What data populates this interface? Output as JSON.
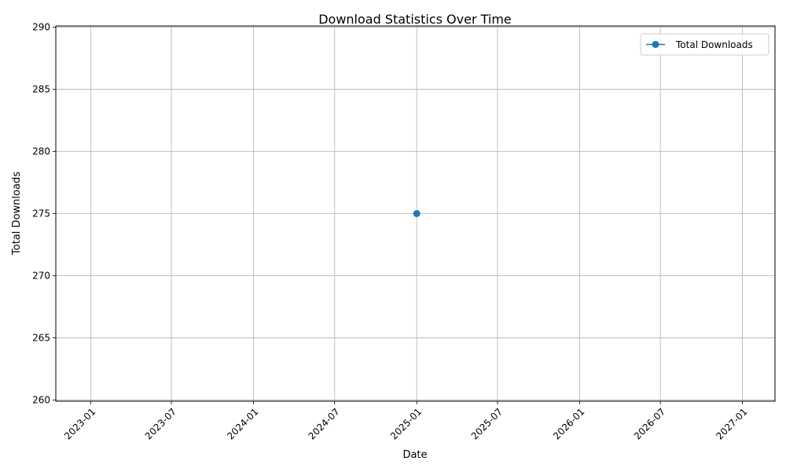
{
  "chart_data": {
    "type": "line",
    "title": "Download Statistics Over Time",
    "xlabel": "Date",
    "ylabel": "Total Downloads",
    "x_ticks": [
      "2023-01",
      "2023-07",
      "2024-01",
      "2024-07",
      "2025-01",
      "2025-07",
      "2026-01",
      "2026-07",
      "2027-01"
    ],
    "y_ticks": [
      "260",
      "265",
      "270",
      "275",
      "280",
      "285",
      "290"
    ],
    "xlim": [
      "2022-10-15",
      "2027-03-15"
    ],
    "ylim": [
      259.9,
      290.1
    ],
    "grid": true,
    "legend_position": "top-right",
    "series": [
      {
        "name": "Total Downloads",
        "color": "#1f77b4",
        "marker": "circle",
        "points": [
          {
            "x": "2025-01-01",
            "y": 275
          }
        ]
      }
    ]
  }
}
